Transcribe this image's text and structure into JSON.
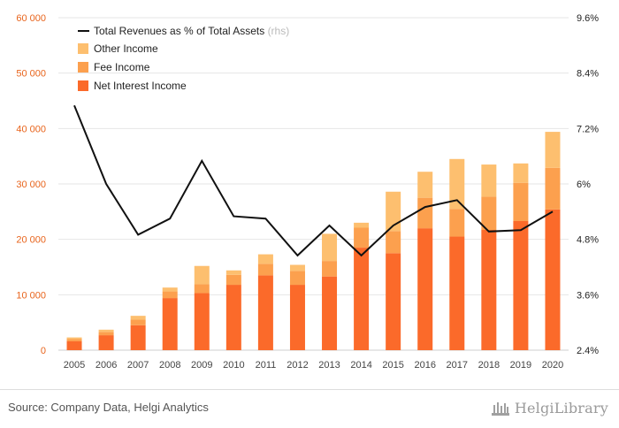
{
  "chart_data": {
    "type": "bar",
    "stacked": true,
    "categories": [
      "2005",
      "2006",
      "2007",
      "2008",
      "2009",
      "2010",
      "2011",
      "2012",
      "2013",
      "2014",
      "2015",
      "2016",
      "2017",
      "2018",
      "2019",
      "2020"
    ],
    "series": [
      {
        "name": "Net Interest Income",
        "color": "#fb6a2a",
        "values": [
          1600,
          2700,
          4500,
          9400,
          10300,
          11800,
          13500,
          11800,
          13300,
          18500,
          17500,
          22000,
          20500,
          21700,
          23300,
          25400
        ]
      },
      {
        "name": "Fee Income",
        "color": "#fca04e",
        "values": [
          400,
          600,
          1000,
          1200,
          1600,
          1800,
          2100,
          2500,
          2800,
          3600,
          4000,
          5500,
          5000,
          6000,
          6900,
          7500
        ]
      },
      {
        "name": "Other Income",
        "color": "#fdbf6f",
        "values": [
          300,
          400,
          700,
          700,
          3300,
          800,
          1700,
          1100,
          4900,
          900,
          7100,
          4700,
          9000,
          5800,
          3500,
          6500
        ]
      }
    ],
    "line": {
      "name": "Total Revenues as % of Total Assets",
      "note": "(rhs)",
      "color": "#111111",
      "values": [
        7.7,
        6.0,
        4.9,
        5.25,
        6.5,
        5.3,
        5.25,
        4.45,
        5.1,
        4.45,
        5.1,
        5.5,
        5.65,
        4.97,
        5.0,
        5.4
      ]
    },
    "y_left": {
      "ticks": [
        0,
        10000,
        20000,
        30000,
        40000,
        50000,
        60000
      ],
      "tick_labels": [
        "0",
        "10 000",
        "20 000",
        "30 000",
        "40 000",
        "50 000",
        "60 000"
      ],
      "ylim": [
        0,
        60000
      ]
    },
    "y_right": {
      "ticks": [
        2.4,
        3.6,
        4.8,
        6.0,
        7.2,
        8.4,
        9.6
      ],
      "tick_labels": [
        "2.4%",
        "3.6%",
        "4.8%",
        "6%",
        "7.2%",
        "8.4%",
        "9.6%"
      ],
      "ylim": [
        2.4,
        9.6
      ]
    },
    "legend_position": "top-left",
    "title": "",
    "xlabel": "",
    "ylabel": ""
  },
  "footer": {
    "source": "Source: Company Data, Helgi Analytics",
    "brand": "HelgiLibrary"
  }
}
